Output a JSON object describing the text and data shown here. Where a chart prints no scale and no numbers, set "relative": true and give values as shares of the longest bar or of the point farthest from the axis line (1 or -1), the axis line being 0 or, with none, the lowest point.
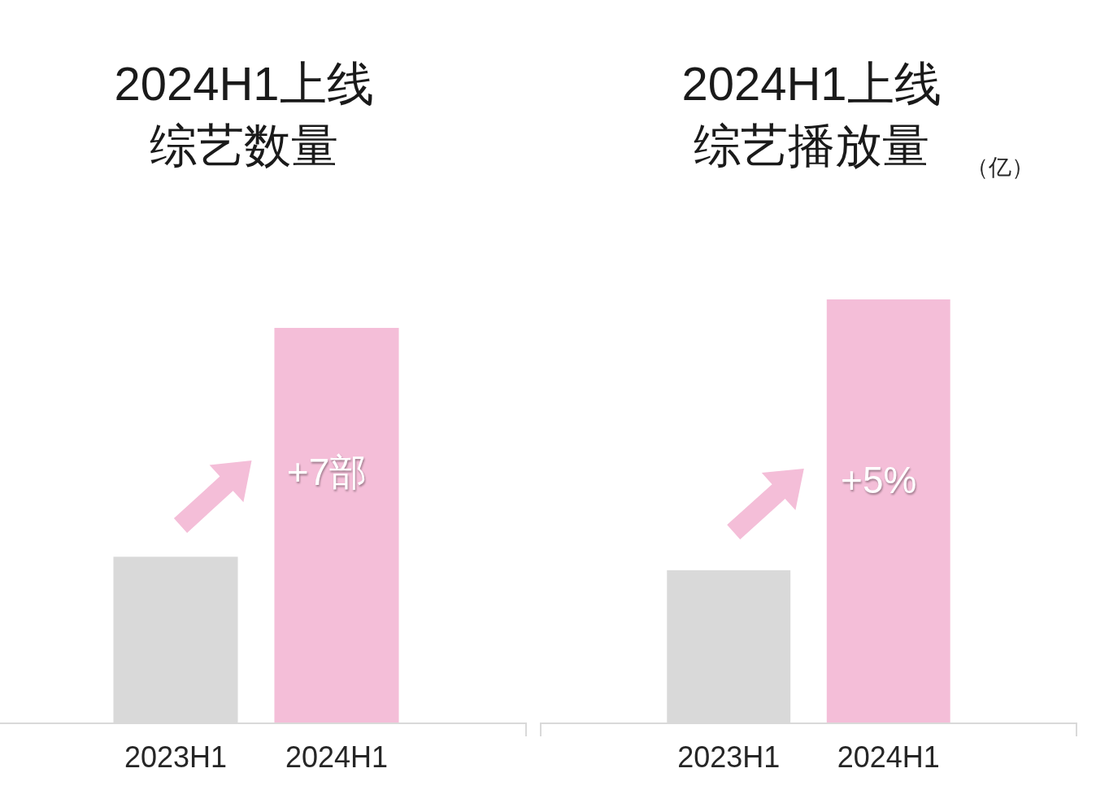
{
  "chart_data": [
    {
      "type": "bar",
      "title": "2024H1上线综艺数量",
      "categories": [
        "2023H1",
        "2024H1"
      ],
      "values": [
        0.42,
        1
      ],
      "colors": [
        "#d9d9d9",
        "#f4bed8"
      ],
      "relative": true,
      "annotations": [
        "+7部"
      ]
    },
    {
      "type": "bar",
      "title": "2024H1上线综艺播放量",
      "ylabel": "（亿）",
      "categories": [
        "2023H1",
        "2024H1"
      ],
      "values": [
        0.36,
        1
      ],
      "colors": [
        "#d9d9d9",
        "#f4bed8"
      ],
      "relative": true,
      "annotations": [
        "+5%"
      ]
    }
  ]
}
